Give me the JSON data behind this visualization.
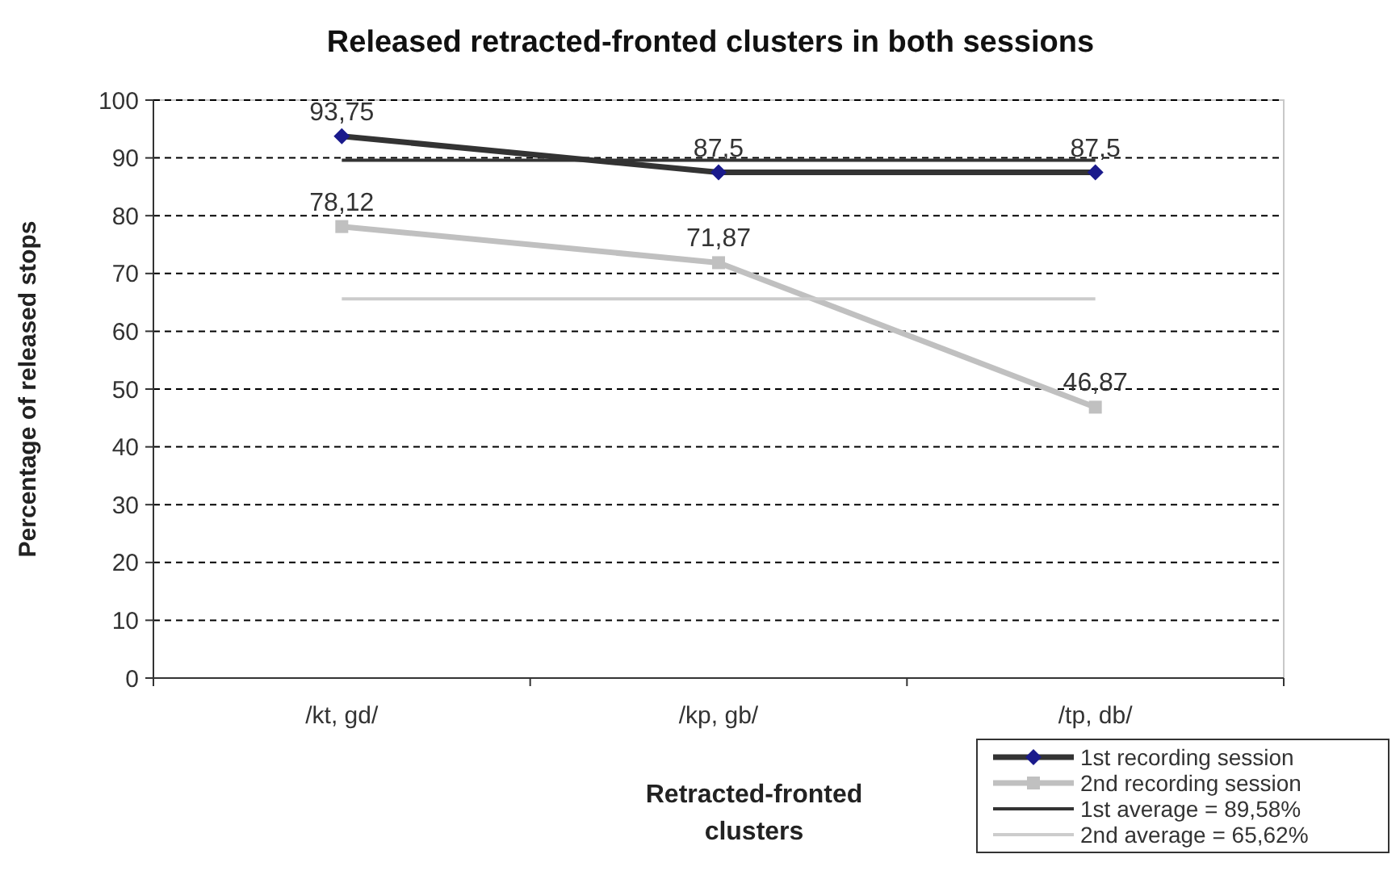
{
  "chart_data": {
    "type": "line",
    "title": "Released retracted-fronted clusters in both sessions",
    "xlabel": "Retracted-fronted clusters",
    "ylabel": "Percentage of released stops",
    "categories": [
      "/kt, gd/",
      "/kp, gb/",
      "/tp, db/"
    ],
    "series": [
      {
        "name": "1st recording session",
        "color": "#333333",
        "values": [
          93.75,
          87.5,
          87.5
        ],
        "marker": "diamond",
        "value_labels": [
          "93,75",
          "87,5",
          "87,5"
        ]
      },
      {
        "name": "2nd recording session",
        "color": "#c0c0c0",
        "values": [
          78.12,
          71.87,
          46.87
        ],
        "marker": "square",
        "value_labels": [
          "78,12",
          "71,87",
          "46,87"
        ]
      },
      {
        "name": "1st average = 89,58%",
        "color": "#333333",
        "values": [
          89.58,
          89.58,
          89.58
        ],
        "marker": "none"
      },
      {
        "name": "2nd average = 65,62%",
        "color": "#cccccc",
        "values": [
          65.62,
          65.62,
          65.62
        ],
        "marker": "none"
      }
    ],
    "ylim": [
      0,
      100
    ],
    "yticks": [
      0,
      10,
      20,
      30,
      40,
      50,
      60,
      70,
      80,
      90,
      100
    ],
    "grid": "y",
    "legend": "bottom right"
  }
}
